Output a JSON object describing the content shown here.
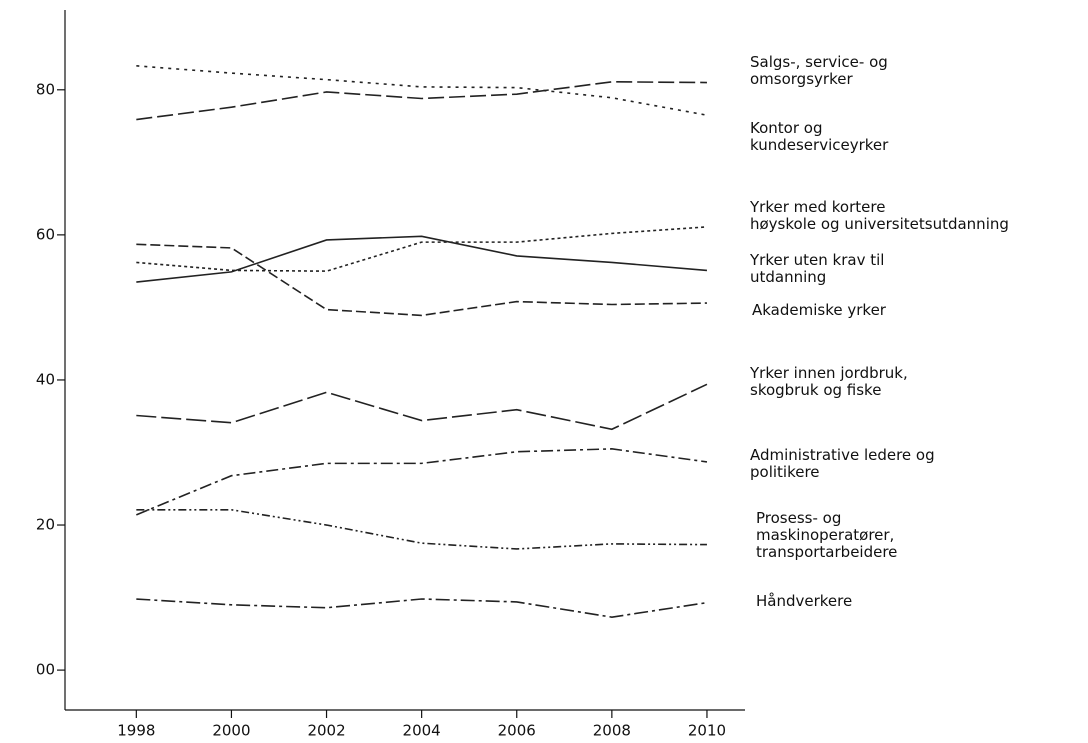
{
  "chart_data": {
    "type": "line",
    "x": [
      1998,
      2000,
      2002,
      2004,
      2006,
      2008,
      2010
    ],
    "xlim": [
      1996.5,
      2010.8
    ],
    "xticks": [
      1998,
      2000,
      2002,
      2004,
      2006,
      2008,
      2010
    ],
    "ylim": [
      -5.5,
      91
    ],
    "yticks": [
      {
        "value": 0,
        "label": "00"
      },
      20,
      40,
      60,
      80
    ],
    "series": [
      {
        "name": "Salgs-, service- og\nomsorgsyrker",
        "color": "#222222",
        "dash": "16,5",
        "values": [
          75.9,
          77.6,
          79.7,
          78.8,
          79.4,
          81.1,
          81.0
        ]
      },
      {
        "name": "Kontor og\nkundeserviceyrker",
        "color": "#222222",
        "dash": "3,5",
        "values": [
          83.3,
          82.3,
          81.4,
          80.4,
          80.3,
          78.9,
          76.5
        ]
      },
      {
        "name": "Yrker med kortere\nhøyskole og  universitetsutdanning",
        "color": "#222222",
        "dash": "3,3",
        "values": [
          56.2,
          55.1,
          55.0,
          59.0,
          59.0,
          60.2,
          61.1
        ]
      },
      {
        "name": "Yrker uten krav til\nutdanning",
        "color": "#222222",
        "dash": "none",
        "values": [
          53.5,
          54.9,
          59.3,
          59.8,
          57.1,
          56.2,
          55.1
        ]
      },
      {
        "name": "Akademiske yrker",
        "color": "#222222",
        "dash": "10,4",
        "values": [
          58.7,
          58.2,
          49.7,
          48.9,
          50.8,
          50.4,
          50.6
        ]
      },
      {
        "name": "Yrker innen jordbruk,\nskogbruk og fiske",
        "color": "#222222",
        "dash": "20,5",
        "values": [
          35.1,
          34.1,
          38.3,
          34.4,
          35.9,
          33.2,
          39.4
        ]
      },
      {
        "name": "Administrative ledere og\npolitikere",
        "color": "#222222",
        "dash": "12,4,3,4",
        "values": [
          21.4,
          26.8,
          28.5,
          28.5,
          30.1,
          30.5,
          28.7
        ]
      },
      {
        "name": "Prosess- og\nmaskinoperatører,\ntransportarbeidere",
        "color": "#222222",
        "dash": "8,3,2,3,2,3",
        "values": [
          22.1,
          22.1,
          20.0,
          17.5,
          16.7,
          17.4,
          17.3
        ]
      },
      {
        "name": "Håndverkere",
        "color": "#222222",
        "dash": "14,4,3,4",
        "values": [
          9.8,
          9.0,
          8.6,
          9.8,
          9.4,
          7.3,
          9.3
        ]
      }
    ]
  }
}
